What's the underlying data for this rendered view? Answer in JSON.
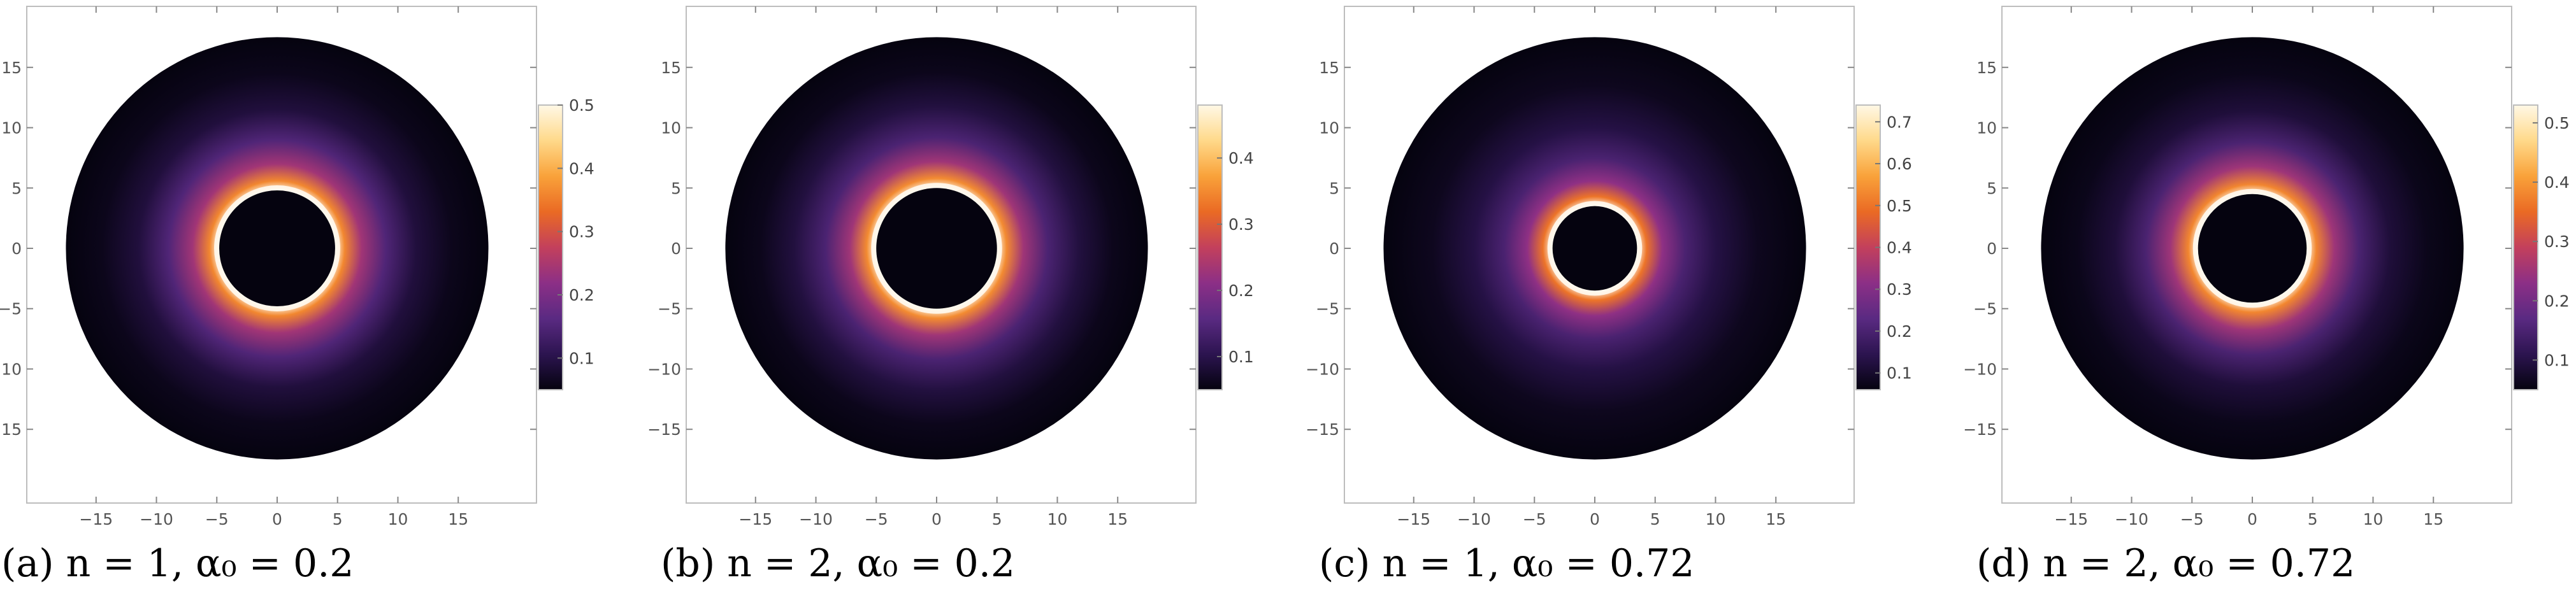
{
  "chart_data": [
    {
      "type": "heatmap",
      "caption": "(a) n = 1, α₀ = 0.2",
      "xlim": [
        -19,
        19
      ],
      "ylim": [
        -19,
        19
      ],
      "x_ticks": [
        -15,
        -10,
        -5,
        0,
        5,
        10,
        15
      ],
      "y_ticks": [
        -15,
        -10,
        -5,
        0,
        5,
        10,
        15
      ],
      "disk_outer_radius": 17.5,
      "shadow_radius": 4.8,
      "colorbar_range": [
        0.05,
        0.5
      ],
      "colorbar_ticks": [
        0.1,
        0.2,
        0.3,
        0.4,
        0.5
      ],
      "intensity_profile": [
        [
          4.8,
          0.5
        ],
        [
          5.6,
          0.36
        ],
        [
          7.0,
          0.24
        ],
        [
          9.0,
          0.15
        ],
        [
          11.5,
          0.09
        ],
        [
          14.5,
          0.06
        ],
        [
          17.5,
          0.05
        ]
      ],
      "grid": false
    },
    {
      "type": "heatmap",
      "caption": "(b) n = 2, α₀ = 0.2",
      "xlim": [
        -19,
        19
      ],
      "ylim": [
        -19,
        19
      ],
      "x_ticks": [
        -15,
        -10,
        -5,
        0,
        5,
        10,
        15
      ],
      "y_ticks": [
        -15,
        -10,
        -5,
        0,
        5,
        10,
        15
      ],
      "disk_outer_radius": 17.5,
      "shadow_radius": 5.0,
      "colorbar_range": [
        0.05,
        0.48
      ],
      "colorbar_ticks": [
        0.1,
        0.2,
        0.3,
        0.4
      ],
      "intensity_profile": [
        [
          5.0,
          0.48
        ],
        [
          5.8,
          0.35
        ],
        [
          7.2,
          0.23
        ],
        [
          9.2,
          0.14
        ],
        [
          11.8,
          0.09
        ],
        [
          14.6,
          0.06
        ],
        [
          17.5,
          0.05
        ]
      ],
      "grid": false
    },
    {
      "type": "heatmap",
      "caption": "(c) n = 1, α₀ = 0.72",
      "xlim": [
        -19,
        19
      ],
      "ylim": [
        -19,
        19
      ],
      "x_ticks": [
        -15,
        -10,
        -5,
        0,
        5,
        10,
        15
      ],
      "y_ticks": [
        -15,
        -10,
        -5,
        0,
        5,
        10,
        15
      ],
      "disk_outer_radius": 17.5,
      "shadow_radius": 3.5,
      "colorbar_range": [
        0.06,
        0.74
      ],
      "colorbar_ticks": [
        0.1,
        0.2,
        0.3,
        0.4,
        0.5,
        0.6,
        0.7
      ],
      "intensity_profile": [
        [
          3.5,
          0.74
        ],
        [
          4.3,
          0.5
        ],
        [
          5.6,
          0.32
        ],
        [
          7.5,
          0.2
        ],
        [
          10.0,
          0.13
        ],
        [
          13.5,
          0.08
        ],
        [
          17.5,
          0.06
        ]
      ],
      "grid": false
    },
    {
      "type": "heatmap",
      "caption": "(d) n = 2, α₀ = 0.72",
      "xlim": [
        -19,
        19
      ],
      "ylim": [
        -19,
        19
      ],
      "x_ticks": [
        -15,
        -10,
        -5,
        0,
        5,
        10,
        15
      ],
      "y_ticks": [
        -15,
        -10,
        -5,
        0,
        5,
        10,
        15
      ],
      "disk_outer_radius": 17.5,
      "shadow_radius": 4.5,
      "colorbar_range": [
        0.05,
        0.53
      ],
      "colorbar_ticks": [
        0.1,
        0.2,
        0.3,
        0.4,
        0.5
      ],
      "intensity_profile": [
        [
          4.5,
          0.53
        ],
        [
          5.3,
          0.38
        ],
        [
          6.8,
          0.25
        ],
        [
          8.8,
          0.15
        ],
        [
          11.4,
          0.09
        ],
        [
          14.5,
          0.06
        ],
        [
          17.5,
          0.05
        ]
      ],
      "grid": false
    }
  ],
  "colormap": [
    "#05030f",
    "#2c1450",
    "#5a2a82",
    "#8c2f86",
    "#c3405c",
    "#ea6a24",
    "#f9a23a",
    "#ffd98a",
    "#fff8e6"
  ]
}
